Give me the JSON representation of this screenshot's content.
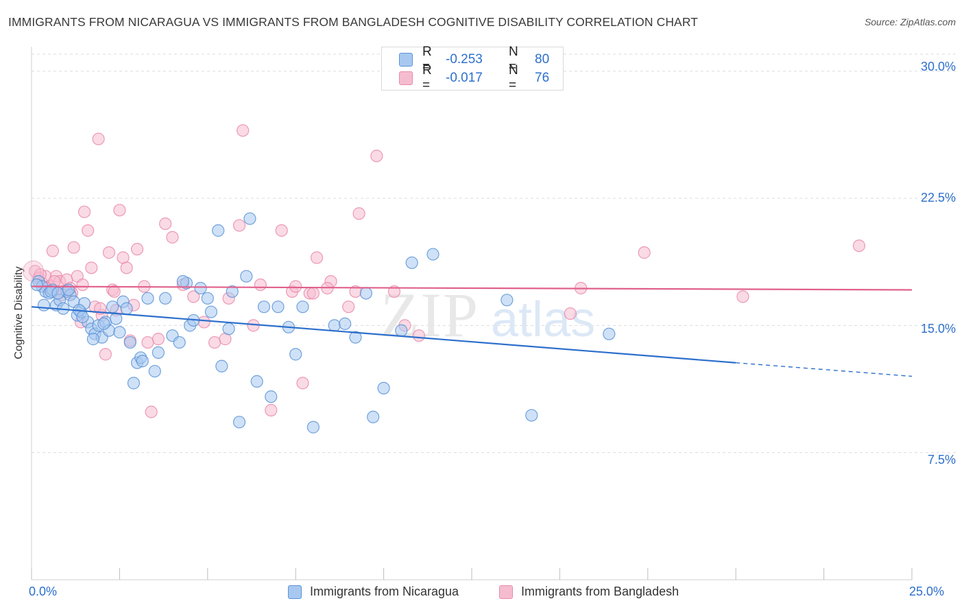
{
  "header": {
    "title": "IMMIGRANTS FROM NICARAGUA VS IMMIGRANTS FROM BANGLADESH COGNITIVE DISABILITY CORRELATION CHART",
    "source": "Source: ZipAtlas.com"
  },
  "legend": {
    "rows": [
      {
        "r_label": "R =",
        "r_value": "-0.253",
        "n_label": "N =",
        "n_value": "80"
      },
      {
        "r_label": "R =",
        "r_value": "-0.017",
        "n_label": "N =",
        "n_value": "76"
      }
    ]
  },
  "bottom_legend": {
    "nicaragua": "Immigrants from Nicaragua",
    "bangladesh": "Immigrants from Bangladesh"
  },
  "colors": {
    "nicaragua_fill": "#a8c8f0",
    "nicaragua_stroke": "#5b93d6",
    "nicaragua_line": "#2c6fcc",
    "bangladesh_fill": "#f5bcd0",
    "bangladesh_stroke": "#e98aaa",
    "bangladesh_line": "#e0608a",
    "tick_text": "#2c6fcc",
    "grid": "#dcdcdc"
  },
  "watermark": {
    "zip": "ZIP",
    "atlas": "atlas"
  },
  "chart_data": {
    "type": "scatter",
    "title": "IMMIGRANTS FROM NICARAGUA VS IMMIGRANTS FROM BANGLADESH COGNITIVE DISABILITY CORRELATION CHART",
    "xlabel": "",
    "ylabel": "Cognitive Disability",
    "xlim": [
      0,
      25
    ],
    "ylim": [
      0,
      31
    ],
    "x_tick_labels": [
      "0.0%",
      "25.0%"
    ],
    "y_ticks": [
      7.5,
      15.0,
      22.5,
      30.0
    ],
    "y_tick_labels": [
      "7.5%",
      "15.0%",
      "22.5%",
      "30.0%"
    ],
    "grid": "horizontal dashed",
    "legend_position": "top-center",
    "series": [
      {
        "name": "Immigrants from Nicaragua",
        "r": -0.253,
        "n": 80,
        "trend": {
          "x0": 0.0,
          "y0": 16.1,
          "x1": 20.0,
          "y1": 12.8,
          "dashed_to_x": 25.0,
          "dashed_to_y": 12.0
        },
        "points": [
          [
            0.2,
            17.6
          ],
          [
            0.3,
            17.3
          ],
          [
            0.4,
            17.0
          ],
          [
            0.5,
            16.9
          ],
          [
            0.6,
            17.1
          ],
          [
            0.7,
            16.2
          ],
          [
            0.8,
            16.5
          ],
          [
            0.9,
            16.0
          ],
          [
            1.0,
            17.0
          ],
          [
            1.1,
            16.8
          ],
          [
            1.2,
            16.4
          ],
          [
            1.3,
            15.6
          ],
          [
            1.4,
            15.8
          ],
          [
            1.5,
            16.3
          ],
          [
            1.6,
            15.2
          ],
          [
            1.7,
            14.8
          ],
          [
            1.8,
            14.5
          ],
          [
            1.9,
            15.0
          ],
          [
            2.0,
            14.3
          ],
          [
            2.1,
            15.2
          ],
          [
            2.2,
            14.7
          ],
          [
            2.3,
            16.1
          ],
          [
            2.4,
            15.4
          ],
          [
            2.5,
            14.6
          ],
          [
            2.6,
            16.4
          ],
          [
            2.7,
            16.0
          ],
          [
            2.8,
            14.0
          ],
          [
            2.9,
            11.6
          ],
          [
            3.0,
            12.8
          ],
          [
            3.1,
            13.1
          ],
          [
            3.3,
            16.6
          ],
          [
            3.5,
            12.3
          ],
          [
            3.6,
            13.4
          ],
          [
            3.8,
            16.6
          ],
          [
            4.0,
            14.4
          ],
          [
            4.2,
            14.0
          ],
          [
            4.4,
            17.5
          ],
          [
            4.5,
            15.0
          ],
          [
            4.6,
            15.3
          ],
          [
            4.8,
            17.2
          ],
          [
            5.0,
            16.6
          ],
          [
            5.1,
            15.8
          ],
          [
            5.3,
            20.6
          ],
          [
            5.4,
            12.6
          ],
          [
            5.6,
            14.8
          ],
          [
            5.9,
            9.3
          ],
          [
            6.2,
            21.3
          ],
          [
            6.4,
            11.7
          ],
          [
            6.6,
            16.1
          ],
          [
            6.8,
            10.8
          ],
          [
            7.3,
            14.9
          ],
          [
            7.5,
            13.3
          ],
          [
            7.7,
            16.1
          ],
          [
            8.0,
            9.0
          ],
          [
            8.6,
            15.0
          ],
          [
            8.9,
            15.1
          ],
          [
            9.2,
            14.3
          ],
          [
            9.5,
            16.9
          ],
          [
            9.7,
            9.6
          ],
          [
            10.0,
            11.3
          ],
          [
            10.5,
            14.7
          ],
          [
            10.8,
            18.7
          ],
          [
            11.4,
            19.2
          ],
          [
            13.5,
            16.5
          ],
          [
            14.2,
            9.7
          ],
          [
            16.4,
            14.5
          ],
          [
            0.15,
            17.4
          ],
          [
            0.35,
            16.2
          ],
          [
            0.55,
            17.0
          ],
          [
            0.75,
            16.9
          ],
          [
            1.05,
            17.1
          ],
          [
            1.35,
            15.9
          ],
          [
            1.75,
            14.2
          ],
          [
            2.05,
            15.1
          ],
          [
            3.15,
            12.9
          ],
          [
            4.3,
            17.6
          ],
          [
            5.7,
            17.0
          ],
          [
            6.1,
            17.9
          ],
          [
            7.0,
            16.1
          ],
          [
            1.45,
            15.5
          ]
        ]
      },
      {
        "name": "Immigrants from Bangladesh",
        "r": -0.017,
        "n": 76,
        "trend": {
          "x0": 0.0,
          "y0": 17.3,
          "x1": 25.0,
          "y1": 17.1
        },
        "points": [
          [
            0.1,
            18.2
          ],
          [
            0.2,
            17.8
          ],
          [
            0.3,
            17.5
          ],
          [
            0.4,
            17.9
          ],
          [
            0.5,
            17.3
          ],
          [
            0.6,
            19.4
          ],
          [
            0.7,
            17.9
          ],
          [
            0.8,
            17.6
          ],
          [
            0.9,
            17.0
          ],
          [
            1.0,
            17.7
          ],
          [
            1.1,
            17.2
          ],
          [
            1.2,
            19.6
          ],
          [
            1.3,
            17.9
          ],
          [
            1.4,
            15.2
          ],
          [
            1.5,
            21.7
          ],
          [
            1.6,
            20.6
          ],
          [
            1.7,
            18.4
          ],
          [
            1.8,
            16.1
          ],
          [
            1.9,
            26.0
          ],
          [
            2.0,
            15.6
          ],
          [
            2.1,
            13.3
          ],
          [
            2.2,
            19.3
          ],
          [
            2.3,
            17.1
          ],
          [
            2.4,
            15.9
          ],
          [
            2.5,
            21.8
          ],
          [
            2.6,
            19.0
          ],
          [
            2.7,
            18.4
          ],
          [
            2.8,
            14.1
          ],
          [
            2.9,
            16.2
          ],
          [
            3.0,
            19.5
          ],
          [
            3.2,
            17.3
          ],
          [
            3.4,
            9.9
          ],
          [
            3.6,
            14.2
          ],
          [
            3.8,
            21.0
          ],
          [
            4.0,
            20.2
          ],
          [
            4.3,
            17.4
          ],
          [
            4.6,
            16.7
          ],
          [
            4.9,
            15.2
          ],
          [
            5.2,
            14.0
          ],
          [
            5.6,
            16.6
          ],
          [
            5.9,
            20.9
          ],
          [
            6.0,
            26.5
          ],
          [
            6.5,
            17.4
          ],
          [
            6.8,
            10.0
          ],
          [
            7.1,
            20.6
          ],
          [
            7.4,
            17.0
          ],
          [
            7.7,
            11.6
          ],
          [
            7.9,
            16.9
          ],
          [
            8.1,
            19.0
          ],
          [
            8.5,
            17.6
          ],
          [
            9.0,
            16.1
          ],
          [
            9.3,
            21.6
          ],
          [
            9.8,
            25.0
          ],
          [
            10.3,
            17.0
          ],
          [
            10.6,
            15.0
          ],
          [
            11.0,
            14.4
          ],
          [
            15.3,
            15.7
          ],
          [
            15.6,
            17.2
          ],
          [
            17.4,
            19.3
          ],
          [
            20.2,
            16.7
          ],
          [
            23.5,
            19.7
          ],
          [
            0.25,
            18.0
          ],
          [
            0.45,
            17.2
          ],
          [
            0.65,
            17.6
          ],
          [
            0.85,
            16.8
          ],
          [
            1.15,
            16.9
          ],
          [
            1.45,
            17.4
          ],
          [
            1.95,
            16.0
          ],
          [
            2.35,
            17.0
          ],
          [
            3.3,
            14.0
          ],
          [
            5.5,
            14.2
          ],
          [
            6.3,
            15.0
          ],
          [
            7.5,
            17.3
          ],
          [
            8.0,
            16.9
          ],
          [
            8.4,
            17.2
          ],
          [
            9.2,
            17.0
          ]
        ]
      }
    ]
  }
}
